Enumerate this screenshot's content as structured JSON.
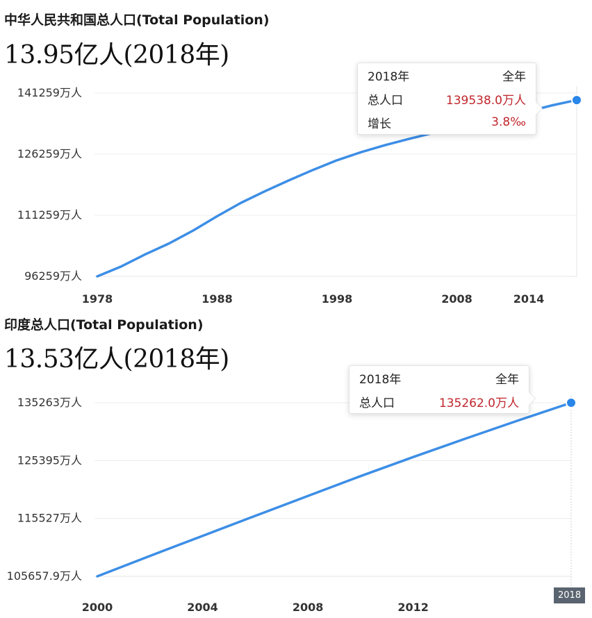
{
  "panels": [
    {
      "heading": "中华人民共和国总人口(Total Population)",
      "big_value": "13.95亿人(2018年)",
      "tooltip": {
        "rows": [
          {
            "label": "2018年",
            "value": "全年"
          },
          {
            "label": "总人口",
            "value": "139538.0万人"
          },
          {
            "label": "增长",
            "value": "3.8‰"
          }
        ]
      }
    },
    {
      "heading": "印度总人口(Total Population)",
      "big_value": "13.53亿人(2018年)",
      "tooltip": {
        "rows": [
          {
            "label": "2018年",
            "value": "全年"
          },
          {
            "label": "总人口",
            "value": "135262.0万人"
          }
        ]
      },
      "x_badge": "2018"
    }
  ],
  "chart_data": [
    {
      "type": "line",
      "title": "中华人民共和国总人口(Total Population)",
      "xlabel": "",
      "ylabel": "",
      "x_ticks": [
        1978,
        1988,
        1998,
        2008,
        2014
      ],
      "y_ticks": [
        "96259万人",
        "111259万人",
        "126259万人",
        "141259万人"
      ],
      "ylim": [
        96259,
        141259
      ],
      "xlim": [
        1978,
        2018
      ],
      "line_color": "#3d8ee6",
      "series": [
        {
          "x": [
            1978,
            1980,
            1982,
            1984,
            1986,
            1988,
            1990,
            1992,
            1994,
            1996,
            1998,
            2000,
            2002,
            2004,
            2006,
            2008,
            2010,
            2012,
            2014,
            2016,
            2018
          ],
          "values": [
            96259,
            98705,
            101654,
            104357,
            107507,
            111026,
            114333,
            117171,
            119850,
            122389,
            124761,
            126743,
            128453,
            129988,
            131448,
            132802,
            134091,
            135404,
            136782,
            138271,
            139538
          ]
        }
      ],
      "highlight": {
        "x": 2018,
        "y": 139538
      }
    },
    {
      "type": "line",
      "title": "印度总人口(Total Population)",
      "xlabel": "",
      "ylabel": "",
      "x_ticks": [
        2000,
        2004,
        2008,
        2012
      ],
      "y_ticks": [
        "105657.9万人",
        "115527万人",
        "125395万人",
        "135263万人"
      ],
      "ylim": [
        105657.9,
        135263
      ],
      "xlim": [
        2000,
        2018
      ],
      "line_color": "#3d8ee6",
      "series": [
        {
          "x": [
            2000,
            2002,
            2004,
            2006,
            2008,
            2010,
            2012,
            2014,
            2016,
            2018
          ],
          "values": [
            105657.9,
            109140,
            112560,
            115970,
            119370,
            122750,
            126000,
            129170,
            132250,
            135262
          ]
        }
      ],
      "highlight": {
        "x": 2018,
        "y": 135262
      }
    }
  ]
}
